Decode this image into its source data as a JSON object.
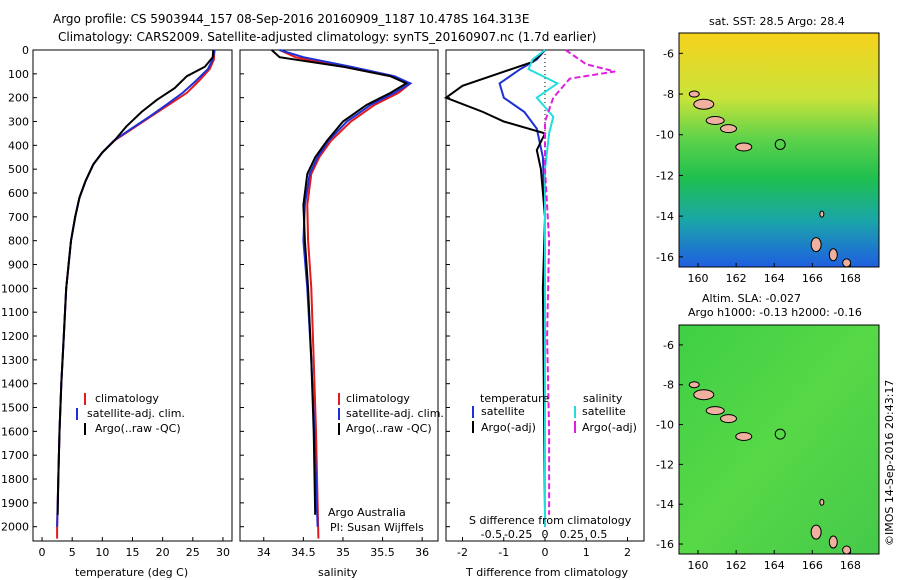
{
  "header": {
    "line1": "Argo profile: CS 5903944_157 08-Sep-2016 20160909_1187 10.478S 164.313E",
    "line2": "Climatology: CARS2009. Satellite-adjusted climatology: synTS_20160907.nc (1.7d earlier)"
  },
  "colors": {
    "climatology": "#e41a1c",
    "satellite": "#1f2fd6",
    "argo": "#000000",
    "satellite_sal": "#22dddd",
    "argo_adj": "#e020e0"
  },
  "chart_data": [
    {
      "name": "temperature-profile",
      "type": "line",
      "xlabel": "temperature (deg C)",
      "ylabel": "",
      "xlim": [
        -1.5,
        31.5
      ],
      "ylim": [
        2060,
        0
      ],
      "xticks": [
        0,
        5,
        10,
        15,
        20,
        25,
        30
      ],
      "yticks": [
        0,
        100,
        200,
        300,
        400,
        500,
        600,
        700,
        800,
        900,
        1000,
        1100,
        1200,
        1300,
        1400,
        1500,
        1600,
        1700,
        1800,
        1900,
        2000
      ],
      "legend": [
        "climatology",
        "satellite-adj. clim.",
        "Argo(..raw -QC)"
      ],
      "series": [
        {
          "name": "climatology",
          "color": "#e41a1c",
          "x": [
            28.6,
            28.5,
            27.8,
            26,
            24,
            21,
            18,
            15,
            12,
            10,
            8.5,
            7.2,
            6.2,
            5.5,
            4.8,
            4,
            3.6,
            3.2,
            2.9,
            2.7,
            2.6,
            2.5,
            2.5
          ],
          "y": [
            0,
            40,
            80,
            130,
            180,
            230,
            280,
            330,
            380,
            430,
            480,
            550,
            620,
            700,
            800,
            1000,
            1200,
            1400,
            1600,
            1800,
            1900,
            2000,
            2050
          ]
        },
        {
          "name": "satellite-adj. clim.",
          "color": "#1f2fd6",
          "x": [
            28.6,
            28.3,
            27.5,
            25.5,
            23.3,
            20.6,
            17.8,
            14.8,
            11.9,
            10,
            8.5,
            7.2,
            6.2,
            5.5,
            4.8,
            4,
            3.6,
            3.2,
            2.9,
            2.7,
            2.6,
            2.5
          ],
          "y": [
            0,
            40,
            80,
            130,
            180,
            230,
            280,
            330,
            380,
            430,
            480,
            550,
            620,
            700,
            800,
            1000,
            1200,
            1400,
            1600,
            1800,
            1900,
            2000
          ]
        },
        {
          "name": "Argo(..raw -QC)",
          "color": "#000000",
          "x": [
            28.4,
            28.3,
            27,
            24,
            22,
            19,
            16.5,
            14,
            12,
            10,
            8.5,
            7.2,
            6.2,
            5.5,
            4.8,
            4,
            3.6,
            3.2,
            2.9,
            2.7,
            2.6
          ],
          "y": [
            0,
            30,
            70,
            110,
            160,
            210,
            260,
            320,
            380,
            430,
            480,
            550,
            620,
            700,
            800,
            1000,
            1200,
            1400,
            1600,
            1800,
            1950
          ]
        }
      ]
    },
    {
      "name": "salinity-profile",
      "type": "line",
      "xlabel": "salinity",
      "xlim": [
        33.7,
        36.2
      ],
      "ylim": [
        2060,
        0
      ],
      "xticks": [
        34,
        34.5,
        35,
        35.5,
        36
      ],
      "legend": [
        "climatology",
        "satellite-adj. clim.",
        "Argo(..raw -QC)"
      ],
      "annotations": [
        "Argo Australia",
        "PI: Susan Wijffels"
      ],
      "series": [
        {
          "name": "climatology",
          "color": "#e41a1c",
          "x": [
            34.2,
            34.4,
            35,
            35.6,
            35.85,
            35.7,
            35.4,
            35.1,
            34.85,
            34.7,
            34.6,
            34.55,
            34.56,
            34.6,
            34.63,
            34.66,
            34.68,
            34.69
          ],
          "y": [
            0,
            30,
            70,
            110,
            140,
            180,
            230,
            300,
            380,
            450,
            520,
            650,
            800,
            1000,
            1300,
            1600,
            1900,
            2050
          ]
        },
        {
          "name": "satellite-adj. clim.",
          "color": "#1f2fd6",
          "x": [
            34.2,
            34.5,
            35.1,
            35.65,
            35.85,
            35.65,
            35.35,
            35.05,
            34.82,
            34.68,
            34.58,
            34.52,
            34.5,
            34.55,
            34.6,
            34.64,
            34.67,
            34.68
          ],
          "y": [
            0,
            30,
            70,
            110,
            140,
            180,
            230,
            300,
            380,
            450,
            520,
            650,
            800,
            1000,
            1300,
            1600,
            1900,
            2000
          ]
        },
        {
          "name": "Argo(..raw -QC)",
          "color": "#000000",
          "x": [
            34.1,
            34.2,
            35,
            35.6,
            35.8,
            35.6,
            35.3,
            35,
            34.8,
            34.65,
            34.55,
            34.5,
            34.52,
            34.56,
            34.6,
            34.63,
            34.65
          ],
          "y": [
            0,
            30,
            70,
            110,
            140,
            180,
            230,
            300,
            380,
            450,
            520,
            650,
            800,
            1000,
            1300,
            1600,
            1950
          ]
        }
      ]
    },
    {
      "name": "difference-profile",
      "type": "line",
      "xlabel_bottom": "T difference from climatology",
      "xlabel_top": "S difference from climatology",
      "xlim": [
        -2.4,
        2.4
      ],
      "ylim": [
        2060,
        0
      ],
      "xticks_T": [
        -2,
        -1,
        0,
        1,
        2
      ],
      "xticks_S": [
        "-0.5",
        "-0.25",
        "0",
        "0.25",
        "0.5"
      ],
      "legend_headers": [
        "temperature",
        "salinity"
      ],
      "legend": [
        "satellite",
        "Argo(-adj)",
        "satellite",
        "Argo(-adj)"
      ],
      "series": [
        {
          "name": "satellite",
          "color": "#1f2fd6",
          "x": [
            0,
            -0.2,
            -0.6,
            -1.1,
            -1,
            -0.5,
            -0.2,
            -0.05,
            0,
            0,
            0
          ],
          "y": [
            0,
            40,
            80,
            140,
            200,
            260,
            330,
            450,
            700,
            1200,
            2000
          ]
        },
        {
          "name": "Argo(-adj)",
          "color": "#000000",
          "x": [
            0,
            -0.3,
            -2,
            -2.4,
            -1.5,
            -1,
            0,
            -0.2,
            -0.1,
            0,
            -0.05,
            0
          ],
          "y": [
            0,
            50,
            150,
            200,
            260,
            300,
            350,
            420,
            500,
            700,
            1000,
            1950
          ]
        },
        {
          "name": "satellite",
          "color": "#22dddd",
          "x": [
            0,
            -0.3,
            -0.4,
            0.3,
            -0.2,
            0.2,
            0.1,
            0,
            0
          ],
          "y": [
            0,
            40,
            80,
            140,
            200,
            280,
            350,
            500,
            2000
          ]
        },
        {
          "name": "Argo(-adj)",
          "color": "#e020e0",
          "x": [
            0.5,
            1,
            1.7,
            0.6,
            0.2,
            0,
            0,
            0.1,
            0.05,
            0.1,
            0.1
          ],
          "y": [
            0,
            60,
            90,
            120,
            200,
            300,
            500,
            800,
            1200,
            1600,
            1950
          ]
        }
      ]
    },
    {
      "name": "sst-map",
      "type": "heatmap",
      "title": "sat. SST: 28.5 Argo: 28.4",
      "xticks": [
        160,
        162,
        164,
        166,
        168
      ],
      "yticks": [
        -6,
        -8,
        -10,
        -12,
        -14,
        -16
      ],
      "marker": [
        164.313,
        -10.478
      ]
    },
    {
      "name": "sla-map",
      "type": "heatmap",
      "title_line1": "Altim. SLA: -0.027",
      "title_line2": "Argo h1000: -0.13 h2000: -0.16",
      "xticks": [
        160,
        162,
        164,
        166,
        168
      ],
      "yticks": [
        -6,
        -8,
        -10,
        -12,
        -14,
        -16
      ],
      "marker": [
        164.313,
        -10.478
      ]
    }
  ],
  "side_stamp": "©IMOS 14-Sep-2016 20:43:17"
}
